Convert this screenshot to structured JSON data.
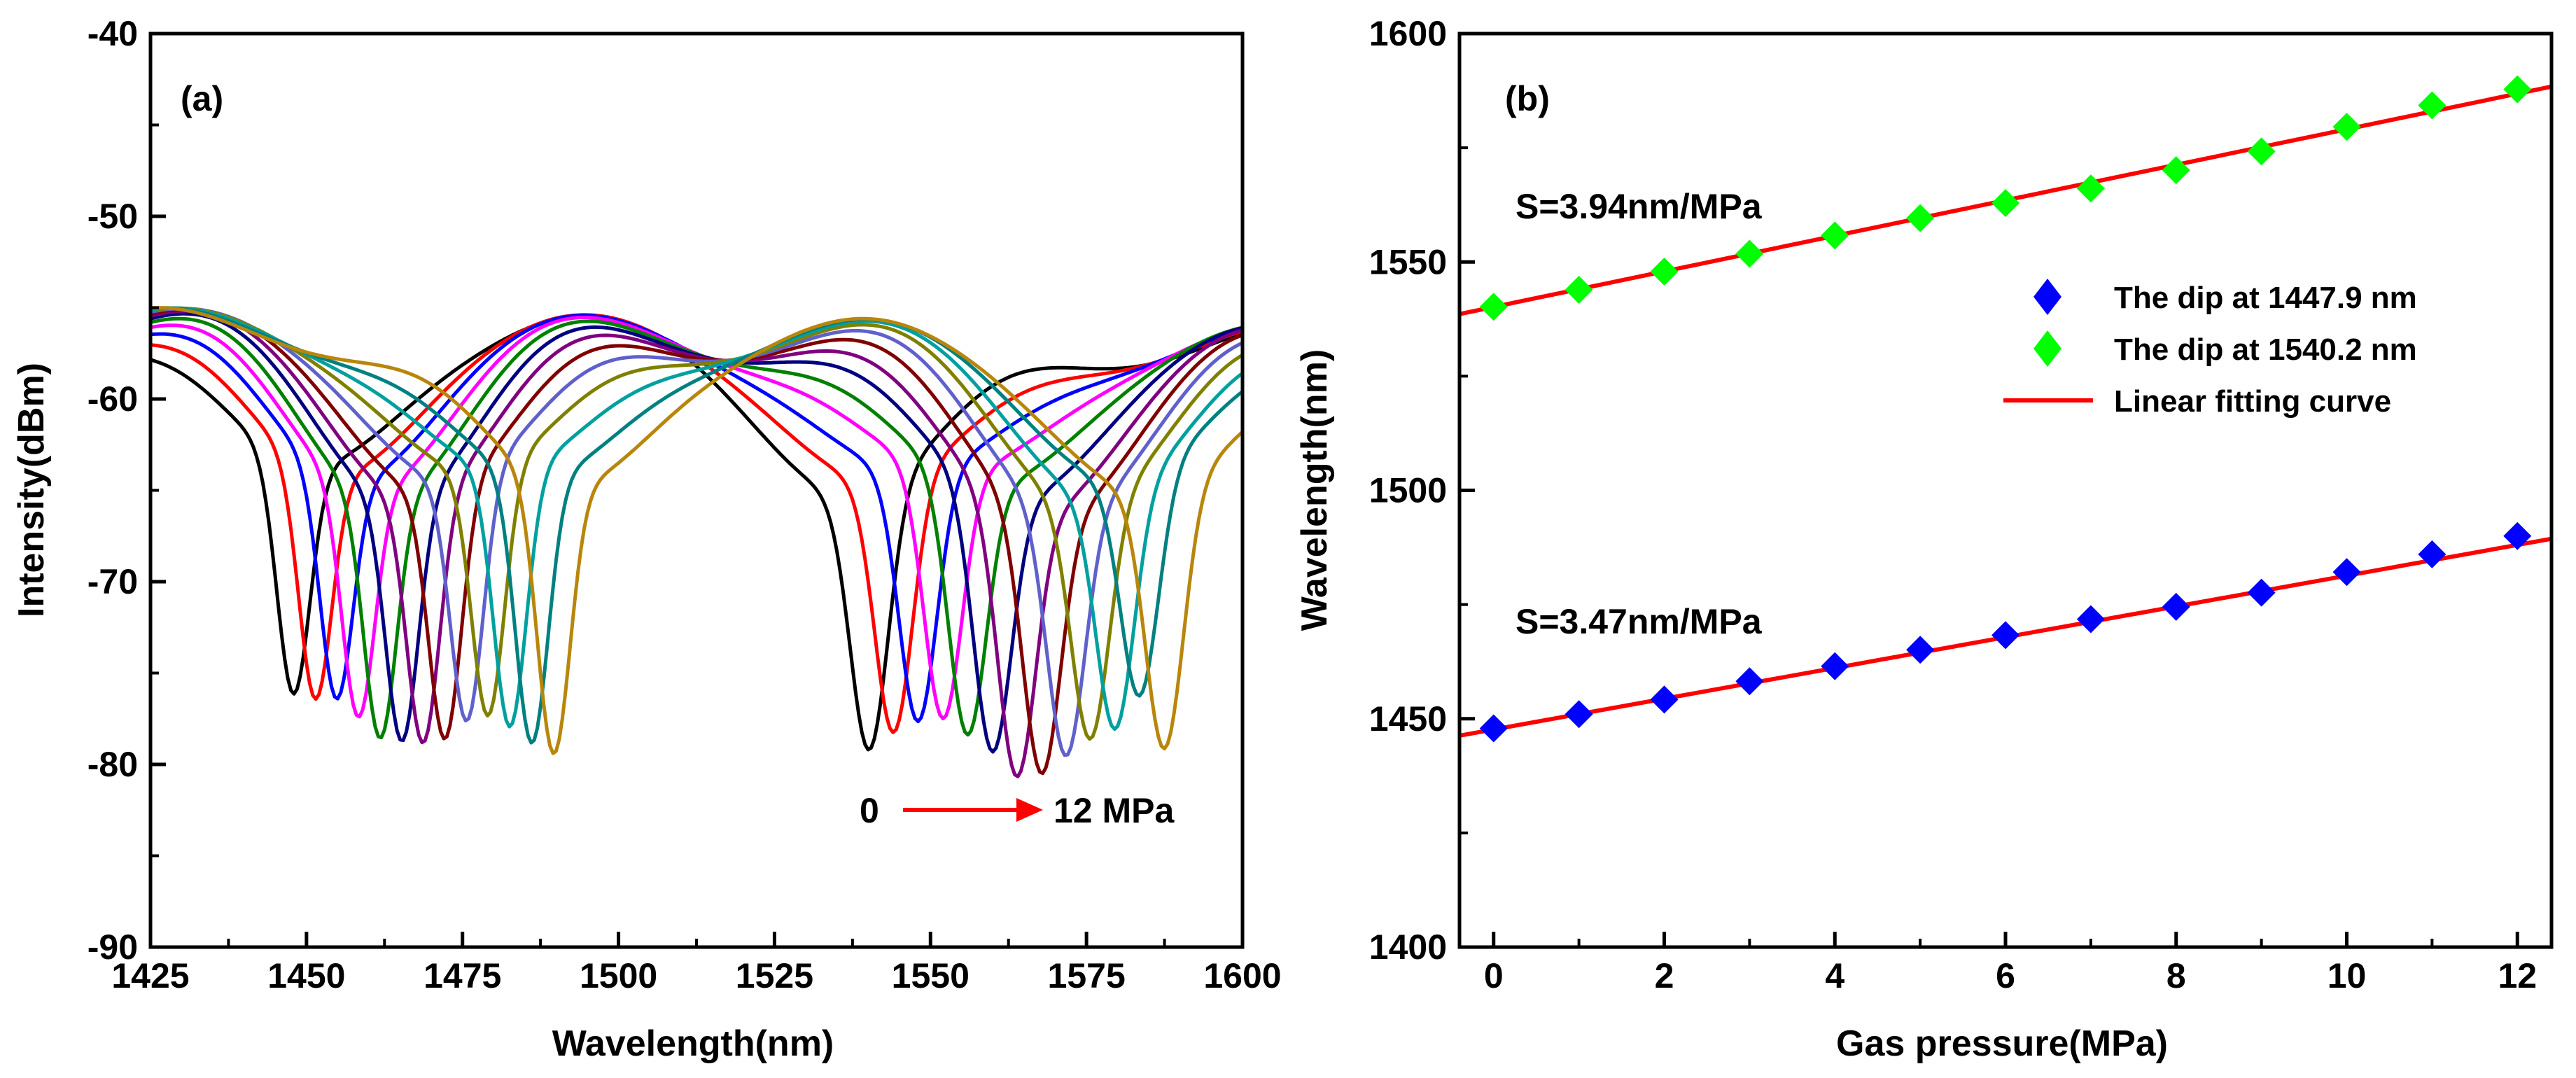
{
  "chart_data": [
    {
      "panel": "a",
      "type": "line",
      "label": "(a)",
      "xlabel": "Wavelength(nm)",
      "ylabel": "Intensity(dBm)",
      "xlim": [
        1425,
        1600
      ],
      "ylim": [
        -90,
        -40
      ],
      "xticks": [
        1425,
        1450,
        1475,
        1500,
        1525,
        1550,
        1575,
        1600
      ],
      "yticks": [
        -90,
        -80,
        -70,
        -60,
        -50,
        -40
      ],
      "pressure_annotation": {
        "start": "0",
        "end": "12 MPa"
      },
      "series": [
        {
          "name": "0 MPa",
          "color": "#000000",
          "dip1_nm": 1447.9,
          "dip1_dbm": -76.8,
          "dip2_nm": 1540.2,
          "dip2_dbm": -79.7
        },
        {
          "name": "1 MPa",
          "color": "#ff0000",
          "dip1_nm": 1451.4,
          "dip1_dbm": -76.5,
          "dip2_nm": 1544.1,
          "dip2_dbm": -79.3
        },
        {
          "name": "2 MPa",
          "color": "#0000ff",
          "dip1_nm": 1454.8,
          "dip1_dbm": -75.9,
          "dip2_nm": 1548.0,
          "dip2_dbm": -79.0
        },
        {
          "name": "3 MPa",
          "color": "#ff00ff",
          "dip1_nm": 1458.3,
          "dip1_dbm": -76.4,
          "dip2_nm": 1552.0,
          "dip2_dbm": -78.8
        },
        {
          "name": "4 MPa",
          "color": "#008000",
          "dip1_nm": 1461.8,
          "dip1_dbm": -77.3,
          "dip2_nm": 1555.9,
          "dip2_dbm": -79.3
        },
        {
          "name": "5 MPa",
          "color": "#000080",
          "dip1_nm": 1465.3,
          "dip1_dbm": -77.5,
          "dip2_nm": 1559.9,
          "dip2_dbm": -79.6
        },
        {
          "name": "6 MPa",
          "color": "#800080",
          "dip1_nm": 1468.7,
          "dip1_dbm": -77.9,
          "dip2_nm": 1563.8,
          "dip2_dbm": -80.3
        },
        {
          "name": "7 MPa",
          "color": "#800000",
          "dip1_nm": 1472.2,
          "dip1_dbm": -78.2,
          "dip2_nm": 1567.8,
          "dip2_dbm": -79.6
        },
        {
          "name": "8 MPa",
          "color": "#6060cc",
          "dip1_nm": 1475.7,
          "dip1_dbm": -77.8,
          "dip2_nm": 1571.7,
          "dip2_dbm": -78.4
        },
        {
          "name": "9 MPa",
          "color": "#808000",
          "dip1_nm": 1479.1,
          "dip1_dbm": -78.0,
          "dip2_nm": 1575.6,
          "dip2_dbm": -77.6
        },
        {
          "name": "10 MPa",
          "color": "#00a0a0",
          "dip1_nm": 1482.6,
          "dip1_dbm": -78.9,
          "dip2_nm": 1579.6,
          "dip2_dbm": -77.5
        },
        {
          "name": "11 MPa",
          "color": "#008080",
          "dip1_nm": 1486.1,
          "dip1_dbm": -79.8,
          "dip2_nm": 1583.5,
          "dip2_dbm": -76.3
        },
        {
          "name": "12 MPa",
          "color": "#b8860b",
          "dip1_nm": 1489.6,
          "dip1_dbm": -80.1,
          "dip2_nm": 1587.5,
          "dip2_dbm": -79.8
        }
      ]
    },
    {
      "panel": "b",
      "type": "scatter",
      "label": "(b)",
      "xlabel": "Gas pressure(MPa)",
      "ylabel": "Wavelength(nm)",
      "xlim": [
        -0.4,
        12.4
      ],
      "ylim": [
        1400,
        1600
      ],
      "xticks": [
        0,
        2,
        4,
        6,
        8,
        10,
        12
      ],
      "yticks": [
        1400,
        1450,
        1500,
        1550,
        1600
      ],
      "legend": [
        {
          "label": "The dip at 1447.9 nm",
          "marker": "diamond",
          "color": "#0000ff"
        },
        {
          "label": "The dip at 1540.2 nm",
          "marker": "diamond",
          "color": "#00ff00"
        },
        {
          "label": "Linear fitting curve",
          "marker": "line",
          "color": "#ff0000"
        }
      ],
      "annotations": {
        "upper_slope": "S=3.94nm/MPa",
        "lower_slope": "S=3.47nm/MPa"
      },
      "series": [
        {
          "name": "The dip at 1447.9 nm",
          "color": "#0000ff",
          "x": [
            0,
            1,
            2,
            3,
            4,
            5,
            6,
            7,
            8,
            9,
            10,
            11,
            12
          ],
          "y": [
            1447.9,
            1451.0,
            1454.2,
            1458.2,
            1461.5,
            1465.1,
            1468.3,
            1471.8,
            1474.5,
            1477.6,
            1482.1,
            1486.0,
            1490.0
          ]
        },
        {
          "name": "The dip at 1540.2 nm",
          "color": "#00ff00",
          "x": [
            0,
            1,
            2,
            3,
            4,
            5,
            6,
            7,
            8,
            9,
            10,
            11,
            12
          ],
          "y": [
            1540.2,
            1543.9,
            1547.9,
            1551.8,
            1555.8,
            1559.6,
            1562.9,
            1566.1,
            1570.1,
            1574.2,
            1579.6,
            1584.3,
            1587.8
          ]
        }
      ],
      "fits": [
        {
          "name": "Linear fitting curve (lower)",
          "color": "#ff0000",
          "x": [
            -0.4,
            12.4
          ],
          "y": [
            1446.3,
            1489.4
          ]
        },
        {
          "name": "Linear fitting curve (upper)",
          "color": "#ff0000",
          "x": [
            -0.4,
            12.4
          ],
          "y": [
            1538.6,
            1588.4
          ]
        }
      ]
    }
  ]
}
